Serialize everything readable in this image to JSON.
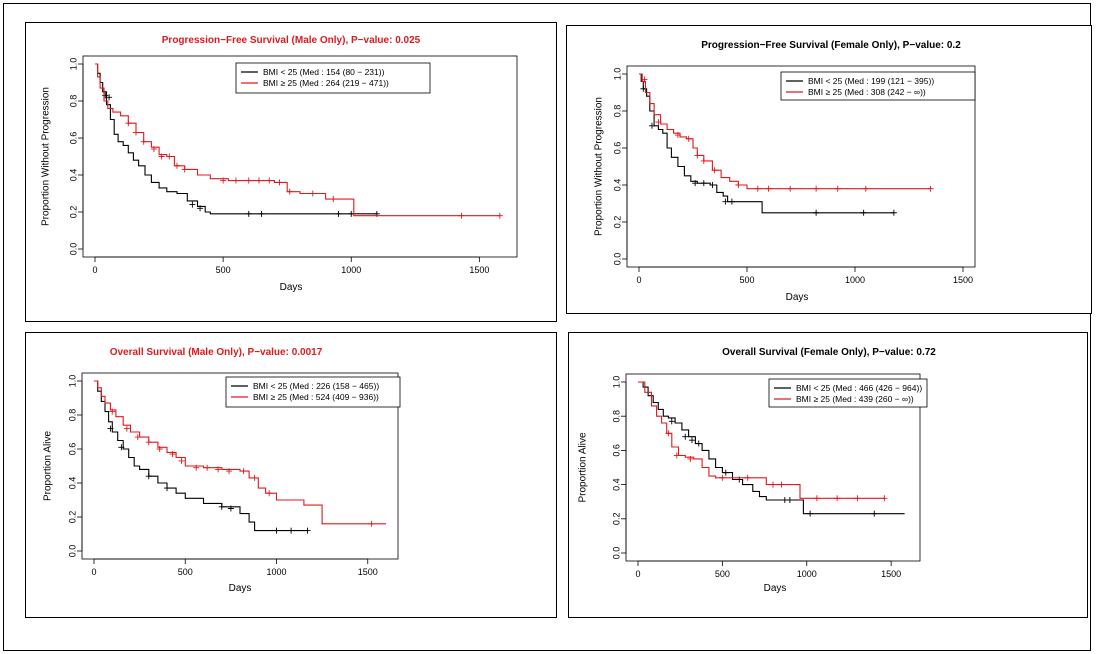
{
  "colors": {
    "low": "#000000",
    "high": "#e0191d"
  },
  "chart_data": [
    {
      "type": "line",
      "title": "Progression−Free Survival (Male Only), P−value: 0.025",
      "title_color": "#e0191d",
      "xlabel": "Days",
      "ylabel": "Proportion Without Progression",
      "xlim": [
        0,
        1600
      ],
      "ylim": [
        0,
        1.0
      ],
      "xticks": [
        "0",
        "500",
        "1000",
        "1500"
      ],
      "yticks": [
        "0.0",
        "0.2",
        "0.4",
        "0.6",
        "0.8",
        "1.0"
      ],
      "legend_position": "top-right",
      "series": [
        {
          "name": "BMI < 25 (Med : 154 (80 − 231))",
          "color": "#000000",
          "x": [
            0,
            10,
            20,
            30,
            45,
            60,
            75,
            90,
            110,
            130,
            150,
            170,
            195,
            220,
            250,
            280,
            320,
            360,
            400,
            430,
            450,
            1100
          ],
          "y": [
            1.0,
            0.95,
            0.9,
            0.85,
            0.78,
            0.7,
            0.62,
            0.58,
            0.56,
            0.52,
            0.48,
            0.45,
            0.4,
            0.36,
            0.33,
            0.31,
            0.3,
            0.26,
            0.23,
            0.2,
            0.19,
            0.19
          ],
          "censor_x": [
            40,
            55,
            380,
            410,
            600,
            650,
            950,
            1000,
            1100
          ],
          "censor_y": [
            0.83,
            0.82,
            0.24,
            0.22,
            0.19,
            0.19,
            0.19,
            0.19,
            0.19
          ]
        },
        {
          "name": "BMI ≥ 25 (Med : 264 (219 − 471))",
          "color": "#e0191d",
          "x": [
            0,
            10,
            20,
            35,
            50,
            70,
            100,
            130,
            160,
            190,
            220,
            250,
            280,
            310,
            350,
            400,
            450,
            520,
            560,
            700,
            750,
            800,
            900,
            950,
            1010,
            1020,
            1580
          ],
          "y": [
            1.0,
            0.93,
            0.87,
            0.8,
            0.76,
            0.74,
            0.72,
            0.68,
            0.63,
            0.58,
            0.55,
            0.51,
            0.5,
            0.45,
            0.43,
            0.4,
            0.38,
            0.37,
            0.37,
            0.36,
            0.31,
            0.3,
            0.27,
            0.27,
            0.18,
            0.18,
            0.18
          ],
          "censor_x": [
            130,
            160,
            190,
            230,
            260,
            290,
            320,
            350,
            500,
            550,
            600,
            640,
            680,
            720,
            760,
            850,
            930,
            1430,
            1580
          ],
          "censor_y": [
            0.68,
            0.63,
            0.58,
            0.54,
            0.5,
            0.5,
            0.45,
            0.43,
            0.37,
            0.37,
            0.37,
            0.37,
            0.37,
            0.36,
            0.31,
            0.3,
            0.27,
            0.18,
            0.18
          ]
        }
      ]
    },
    {
      "type": "line",
      "title": "Progression−Free Survival (Female Only), P−value: 0.2",
      "title_color": "#000000",
      "xlabel": "Days",
      "ylabel": "Proportion Without Progression",
      "xlim": [
        0,
        1500
      ],
      "ylim": [
        0,
        1.0
      ],
      "xticks": [
        "0",
        "500",
        "1000",
        "1500"
      ],
      "yticks": [
        "0.0",
        "0.2",
        "0.4",
        "0.6",
        "0.8",
        "1.0"
      ],
      "legend_position": "top-right",
      "series": [
        {
          "name": "BMI < 25 (Med : 199 (121 − 395))",
          "color": "#000000",
          "x": [
            0,
            10,
            20,
            35,
            50,
            70,
            90,
            110,
            130,
            150,
            180,
            210,
            240,
            270,
            300,
            330,
            360,
            390,
            410,
            560,
            570,
            1180
          ],
          "y": [
            1.0,
            0.96,
            0.92,
            0.88,
            0.8,
            0.72,
            0.7,
            0.68,
            0.6,
            0.55,
            0.5,
            0.45,
            0.42,
            0.41,
            0.41,
            0.4,
            0.36,
            0.34,
            0.31,
            0.31,
            0.25,
            0.25
          ],
          "censor_x": [
            20,
            60,
            260,
            300,
            340,
            400,
            430,
            820,
            1040,
            1180
          ],
          "censor_y": [
            0.92,
            0.72,
            0.41,
            0.41,
            0.4,
            0.31,
            0.31,
            0.25,
            0.25,
            0.25
          ]
        },
        {
          "name": "BMI ≥ 25 (Med : 308 (242 − ∞))",
          "color": "#e0191d",
          "x": [
            0,
            15,
            30,
            50,
            70,
            100,
            130,
            160,
            190,
            220,
            250,
            270,
            300,
            340,
            380,
            420,
            460,
            500,
            1350
          ],
          "y": [
            1.0,
            0.96,
            0.9,
            0.84,
            0.78,
            0.73,
            0.7,
            0.68,
            0.66,
            0.65,
            0.6,
            0.56,
            0.53,
            0.48,
            0.44,
            0.42,
            0.4,
            0.38,
            0.38
          ],
          "censor_x": [
            25,
            90,
            180,
            230,
            270,
            300,
            350,
            460,
            550,
            600,
            700,
            820,
            920,
            1050,
            1350
          ],
          "censor_y": [
            0.97,
            0.74,
            0.67,
            0.65,
            0.56,
            0.53,
            0.48,
            0.4,
            0.38,
            0.38,
            0.38,
            0.38,
            0.38,
            0.38,
            0.38
          ]
        }
      ]
    },
    {
      "type": "line",
      "title": "Overall Survival (Male Only), P−value: 0.0017",
      "title_color": "#e0191d",
      "xlabel": "Days",
      "ylabel": "Proportion Alive",
      "xlim": [
        0,
        1600
      ],
      "ylim": [
        0,
        1.0
      ],
      "xticks": [
        "0",
        "500",
        "1000",
        "1500"
      ],
      "yticks": [
        "0.0",
        "0.2",
        "0.4",
        "0.6",
        "0.8",
        "1.0"
      ],
      "legend_position": "top-right",
      "series": [
        {
          "name": "BMI < 25 (Med : 226 (158 − 465))",
          "color": "#000000",
          "x": [
            0,
            20,
            40,
            60,
            80,
            100,
            130,
            160,
            190,
            220,
            250,
            300,
            350,
            400,
            450,
            500,
            600,
            700,
            800,
            850,
            880,
            1170
          ],
          "y": [
            1.0,
            0.94,
            0.88,
            0.82,
            0.76,
            0.7,
            0.65,
            0.6,
            0.55,
            0.5,
            0.48,
            0.44,
            0.4,
            0.37,
            0.34,
            0.31,
            0.28,
            0.26,
            0.22,
            0.17,
            0.12,
            0.12
          ],
          "censor_x": [
            90,
            150,
            300,
            400,
            700,
            750,
            1000,
            1080,
            1170
          ],
          "censor_y": [
            0.72,
            0.61,
            0.44,
            0.37,
            0.26,
            0.25,
            0.12,
            0.12,
            0.12
          ]
        },
        {
          "name": "BMI ≥ 25 (Med : 524 (409 − 936))",
          "color": "#e0191d",
          "x": [
            0,
            20,
            40,
            60,
            90,
            120,
            160,
            200,
            250,
            300,
            350,
            400,
            450,
            500,
            600,
            700,
            800,
            850,
            900,
            940,
            1000,
            1150,
            1250,
            1600
          ],
          "y": [
            1.0,
            0.96,
            0.91,
            0.87,
            0.83,
            0.79,
            0.74,
            0.7,
            0.67,
            0.64,
            0.61,
            0.58,
            0.55,
            0.5,
            0.49,
            0.48,
            0.47,
            0.43,
            0.37,
            0.34,
            0.3,
            0.27,
            0.16,
            0.16
          ],
          "censor_x": [
            100,
            180,
            240,
            300,
            360,
            430,
            480,
            560,
            620,
            680,
            740,
            820,
            880,
            960,
            1520
          ],
          "censor_y": [
            0.82,
            0.72,
            0.67,
            0.64,
            0.6,
            0.57,
            0.53,
            0.49,
            0.49,
            0.48,
            0.47,
            0.47,
            0.43,
            0.34,
            0.16
          ]
        }
      ]
    },
    {
      "type": "line",
      "title": "Overall Survival (Female Only), P−value: 0.72",
      "title_color": "#000000",
      "xlabel": "Days",
      "ylabel": "Proportion Alive",
      "xlim": [
        0,
        1600
      ],
      "ylim": [
        0,
        1.0
      ],
      "xticks": [
        "0",
        "500",
        "1000",
        "1500"
      ],
      "yticks": [
        "0.0",
        "0.2",
        "0.4",
        "0.6",
        "0.8",
        "1.0"
      ],
      "legend_position": "top-right",
      "series": [
        {
          "name": "BMI < 25 (Med : 466 (426 − 964))",
          "color": "#000000",
          "x": [
            0,
            30,
            60,
            90,
            120,
            150,
            180,
            220,
            260,
            300,
            340,
            380,
            420,
            460,
            500,
            560,
            620,
            680,
            720,
            760,
            960,
            980,
            1580
          ],
          "y": [
            1.0,
            0.97,
            0.92,
            0.88,
            0.84,
            0.8,
            0.79,
            0.76,
            0.72,
            0.68,
            0.64,
            0.6,
            0.55,
            0.5,
            0.47,
            0.43,
            0.4,
            0.36,
            0.33,
            0.31,
            0.31,
            0.23,
            0.23
          ],
          "censor_x": [
            200,
            280,
            320,
            360,
            520,
            600,
            870,
            900,
            1020,
            1400
          ],
          "censor_y": [
            0.77,
            0.68,
            0.66,
            0.64,
            0.47,
            0.43,
            0.31,
            0.31,
            0.23,
            0.23
          ]
        },
        {
          "name": "BMI ≥ 25 (Med : 439 (260 − ∞))",
          "color": "#e0191d",
          "x": [
            0,
            40,
            80,
            110,
            140,
            170,
            200,
            240,
            280,
            330,
            380,
            420,
            460,
            600,
            700,
            760,
            800,
            960,
            1460
          ],
          "y": [
            1.0,
            0.94,
            0.86,
            0.8,
            0.76,
            0.7,
            0.62,
            0.57,
            0.56,
            0.55,
            0.5,
            0.45,
            0.44,
            0.44,
            0.44,
            0.4,
            0.4,
            0.32,
            0.32
          ],
          "censor_x": [
            180,
            230,
            310,
            500,
            650,
            800,
            850,
            1060,
            1180,
            1300,
            1460
          ],
          "censor_y": [
            0.7,
            0.57,
            0.55,
            0.44,
            0.44,
            0.4,
            0.4,
            0.32,
            0.32,
            0.32,
            0.32
          ]
        }
      ]
    }
  ]
}
